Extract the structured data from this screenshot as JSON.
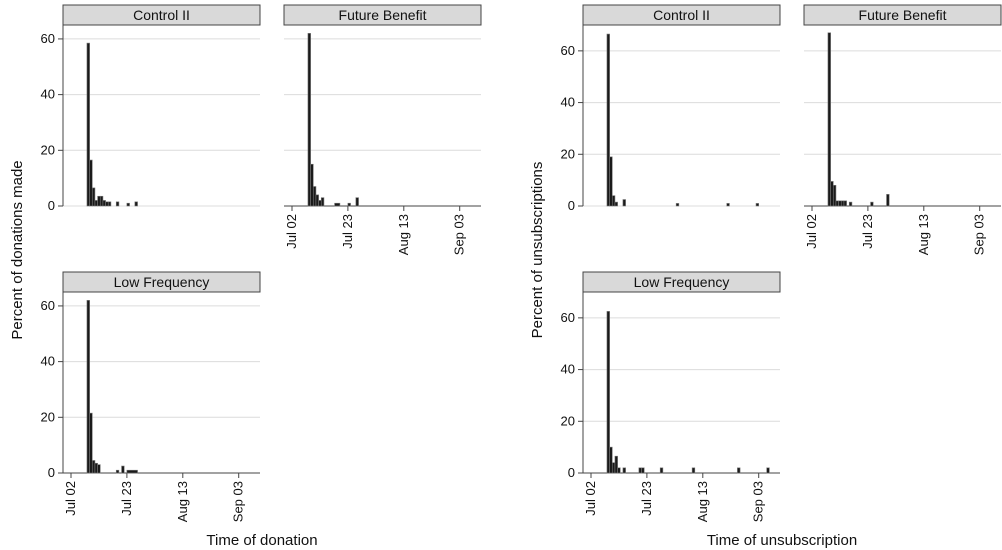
{
  "chart_data": [
    {
      "type": "histogram",
      "ylabel": "Percent of donations made",
      "xlabel": "Time of donation",
      "ylim": [
        0,
        65
      ],
      "yticks": [
        0,
        20,
        40,
        60
      ],
      "xlim": [
        -3,
        71
      ],
      "xticks": [
        {
          "value": 0,
          "label": "Jul 02"
        },
        {
          "value": 21,
          "label": "Jul 23"
        },
        {
          "value": 42,
          "label": "Aug 13"
        },
        {
          "value": 63,
          "label": "Sep 03"
        }
      ],
      "grid": true,
      "color": "#1a1a1a",
      "panels": [
        {
          "title": "Control II",
          "bins": [
            6,
            7,
            8,
            9,
            10,
            11,
            12,
            13,
            14,
            15,
            17,
            18,
            21,
            22,
            24,
            25
          ],
          "counts": [
            58.5,
            16.5,
            6.5,
            2,
            3.5,
            3.5,
            2,
            1.5,
            1.5,
            0,
            1.5,
            0,
            1,
            0,
            1.5
          ]
        },
        {
          "title": "Future Benefit",
          "bins": [
            6,
            7,
            8,
            9,
            10,
            11,
            12,
            16,
            18,
            21,
            22,
            24,
            25
          ],
          "counts": [
            62,
            15,
            7,
            4,
            2,
            3,
            0,
            1,
            0,
            1,
            0,
            3
          ]
        },
        {
          "title": "Low Frequency",
          "bins": [
            6,
            7,
            8,
            9,
            10,
            11,
            17,
            18,
            19,
            20,
            21,
            25
          ],
          "counts": [
            62,
            21.5,
            4.5,
            3.5,
            3,
            0,
            1,
            0,
            2.5,
            0,
            1
          ]
        }
      ]
    },
    {
      "type": "histogram",
      "ylabel": "Percent of unsubscriptions",
      "xlabel": "Time of unsubscription",
      "ylim": [
        0,
        70
      ],
      "yticks": [
        0,
        20,
        40,
        60
      ],
      "xlim": [
        -3,
        71
      ],
      "xticks": [
        {
          "value": 0,
          "label": "Jul 02"
        },
        {
          "value": 21,
          "label": "Jul 23"
        },
        {
          "value": 42,
          "label": "Aug 13"
        },
        {
          "value": 63,
          "label": "Sep 03"
        }
      ],
      "grid": true,
      "color": "#1a1a1a",
      "panels": [
        {
          "title": "Control II",
          "bins": [
            6,
            7,
            8,
            9,
            10,
            12,
            13,
            32,
            33,
            51,
            52,
            62,
            63
          ],
          "counts": [
            66.5,
            19,
            4,
            1.5,
            0,
            2.5,
            0,
            1,
            0,
            1,
            0,
            1
          ]
        },
        {
          "title": "Future Benefit",
          "bins": [
            6,
            7,
            8,
            9,
            10,
            11,
            12,
            13,
            14,
            15,
            22,
            23,
            28,
            29
          ],
          "counts": [
            67,
            9.5,
            8,
            2,
            2,
            2,
            2,
            0,
            1.5,
            0,
            1.5,
            0,
            4.5
          ]
        },
        {
          "title": "Low Frequency",
          "bins": [
            6,
            7,
            8,
            9,
            10,
            11,
            12,
            13,
            18,
            19,
            20,
            26,
            27,
            38,
            39,
            55,
            56,
            66,
            67
          ],
          "counts": [
            62.5,
            10,
            4,
            6.5,
            2,
            0,
            2,
            0,
            2,
            2,
            0,
            2,
            0,
            2,
            0,
            2,
            0,
            2
          ]
        }
      ]
    }
  ]
}
